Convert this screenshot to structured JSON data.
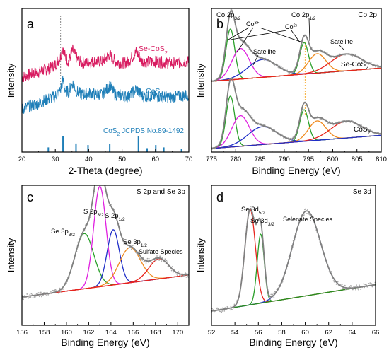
{
  "colors": {
    "axis": "#000000",
    "raw": "#a8a8a8",
    "envelope": "#808080",
    "baseline_red": "#e8231c",
    "baseline_green": "#2a8a1e",
    "blue": "#1f2ec8",
    "green": "#2aa02a",
    "magenta": "#e020e0",
    "orange": "#f08a1e",
    "red": "#e8231c",
    "se_cos2": "#d81b60",
    "cos2": "#1f7fb8",
    "dashed_orange": "#f5a623"
  },
  "chart_data": [
    {
      "panel": "a",
      "type": "line",
      "xlabel": "2-Theta (degree)",
      "ylabel": "Intensity",
      "xlim": [
        20,
        70
      ],
      "xticks": [
        20,
        30,
        40,
        50,
        60,
        70
      ],
      "series": [
        {
          "name": "Se-CoS2",
          "label_main": "Se-CoS",
          "label_sub": "2",
          "color": "#d81b60",
          "x": [
            20,
            25,
            28,
            30,
            31.5,
            32.3,
            33,
            34,
            35.2,
            36.5,
            38,
            40,
            44,
            46.3,
            48,
            50,
            52,
            54.3,
            56,
            60,
            65,
            70
          ],
          "y": [
            0.52,
            0.56,
            0.58,
            0.61,
            0.66,
            0.73,
            0.66,
            0.63,
            0.71,
            0.65,
            0.62,
            0.63,
            0.63,
            0.68,
            0.63,
            0.62,
            0.63,
            0.7,
            0.63,
            0.63,
            0.62,
            0.63
          ]
        },
        {
          "name": "CoS2",
          "label_main": "CoS",
          "label_sub": "2",
          "color": "#1f7fb8",
          "x": [
            20,
            25,
            28,
            30,
            31.5,
            32.3,
            33,
            34,
            35.2,
            36.5,
            38,
            40,
            44,
            46.3,
            48,
            50,
            52,
            54.3,
            56,
            60,
            65,
            70
          ],
          "y": [
            0.3,
            0.34,
            0.37,
            0.39,
            0.43,
            0.5,
            0.43,
            0.42,
            0.48,
            0.42,
            0.4,
            0.41,
            0.4,
            0.46,
            0.4,
            0.39,
            0.39,
            0.44,
            0.39,
            0.39,
            0.38,
            0.4
          ]
        }
      ],
      "reference": {
        "label_main": "CoS",
        "label_sub": "2",
        "label_rest": " JCPDS No.89-1492",
        "x": [
          27.9,
          32.3,
          36.2,
          39.8,
          46.3,
          54.9,
          57.5,
          60.1,
          62.5,
          67.8
        ],
        "h": [
          0.3,
          1.0,
          0.55,
          0.45,
          0.5,
          1.0,
          0.25,
          0.45,
          0.3,
          0.2
        ]
      },
      "dashed_lines_x": [
        31.6,
        32.6
      ]
    },
    {
      "panel": "b",
      "type": "line",
      "title": "Co 2p",
      "xlabel": "Binding Energy (eV)",
      "ylabel": "Intensity",
      "xlim": [
        775,
        810
      ],
      "xticks": [
        775,
        780,
        785,
        790,
        795,
        800,
        805,
        810
      ],
      "annotations": [
        {
          "main": "Co 2p",
          "sub": "3/2"
        },
        {
          "main": "Co 2p",
          "sub": "1/2"
        },
        {
          "main": "Co",
          "sup": "3+"
        },
        {
          "main": "Co",
          "sup": "2+"
        },
        {
          "main": "Satellite"
        },
        {
          "main": "Satellite"
        },
        {
          "main": "Se-CoS",
          "sub": "2"
        },
        {
          "main": "CoS",
          "sub": "2"
        }
      ],
      "peaks": [
        {
          "center": 778.9,
          "amp": 1.0,
          "width": 0.9,
          "color": "green"
        },
        {
          "center": 781.0,
          "amp": 0.6,
          "width": 1.8,
          "color": "magenta"
        },
        {
          "center": 785.5,
          "amp": 0.35,
          "width": 3.0,
          "color": "blue"
        },
        {
          "center": 794.1,
          "amp": 0.62,
          "width": 0.9,
          "color": "green"
        },
        {
          "center": 796.8,
          "amp": 0.38,
          "width": 1.8,
          "color": "orange"
        },
        {
          "center": 802.8,
          "amp": 0.33,
          "width": 3.2,
          "color": "red"
        }
      ],
      "dashed_lines_x": [
        793.9,
        794.3
      ]
    },
    {
      "panel": "c",
      "type": "line",
      "title": "S 2p and Se 3p",
      "xlabel": "Binding Energy (eV)",
      "ylabel": "Intensity",
      "xlim": [
        156,
        171
      ],
      "xticks": [
        156,
        158,
        160,
        162,
        164,
        166,
        168,
        170
      ],
      "annotations": [
        {
          "main": "Se 3p",
          "sub": "3/2"
        },
        {
          "main": "S 2p",
          "sub": "3/2"
        },
        {
          "main": "S 2p",
          "sub": "1/2"
        },
        {
          "main": "Se 3p",
          "sub": "1/2"
        },
        {
          "main": "Sulfate Species"
        }
      ],
      "peaks": [
        {
          "center": 161.6,
          "amp": 0.55,
          "width": 0.85,
          "color": "green"
        },
        {
          "center": 163.0,
          "amp": 1.0,
          "width": 0.55,
          "color": "magenta"
        },
        {
          "center": 164.2,
          "amp": 0.55,
          "width": 0.55,
          "color": "blue"
        },
        {
          "center": 165.7,
          "amp": 0.35,
          "width": 0.95,
          "color": "orange"
        },
        {
          "center": 168.3,
          "amp": 0.2,
          "width": 0.9,
          "color": "red"
        }
      ]
    },
    {
      "panel": "d",
      "type": "line",
      "title": "Se 3d",
      "xlabel": "Binding Energy (eV)",
      "ylabel": "Intensity",
      "xlim": [
        52,
        66
      ],
      "xticks": [
        52,
        54,
        56,
        58,
        60,
        62,
        64,
        66
      ],
      "annotations": [
        {
          "main": "Se 3d",
          "sub": "5/2"
        },
        {
          "main": "Se 3d",
          "sub": "3/2"
        },
        {
          "main": "Selenate Species"
        }
      ],
      "peaks": [
        {
          "center": 55.3,
          "amp": 0.9,
          "width": 0.45,
          "color": "red"
        },
        {
          "center": 56.2,
          "amp": 0.65,
          "width": 0.3,
          "color": "green"
        },
        {
          "center": 60.1,
          "amp": 0.8,
          "width": 1.2,
          "color": "blue"
        }
      ]
    }
  ]
}
